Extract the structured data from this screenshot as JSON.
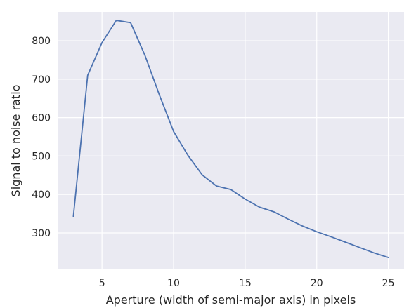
{
  "chart_data": {
    "type": "line",
    "title": "",
    "xlabel": "Aperture (width of semi-major axis) in pixels",
    "ylabel": "Signal to noise ratio",
    "xlim": [
      1.9,
      26.1
    ],
    "ylim": [
      205,
      875
    ],
    "x_ticks": [
      5,
      10,
      15,
      20,
      25
    ],
    "y_ticks": [
      300,
      400,
      500,
      600,
      700,
      800
    ],
    "grid": true,
    "background_color": "#eaeaf2",
    "grid_color": "#ffffff",
    "series": [
      {
        "color": "#4c72b0",
        "x": [
          3,
          4,
          5,
          6,
          7,
          8,
          9,
          10,
          11,
          12,
          13,
          14,
          15,
          16,
          17,
          18,
          19,
          20,
          21,
          22,
          23,
          24,
          25
        ],
        "y": [
          343,
          710,
          795,
          853,
          847,
          762,
          660,
          564,
          502,
          451,
          422,
          413,
          388,
          367,
          355,
          336,
          318,
          303,
          290,
          276,
          262,
          248,
          236
        ]
      }
    ]
  }
}
